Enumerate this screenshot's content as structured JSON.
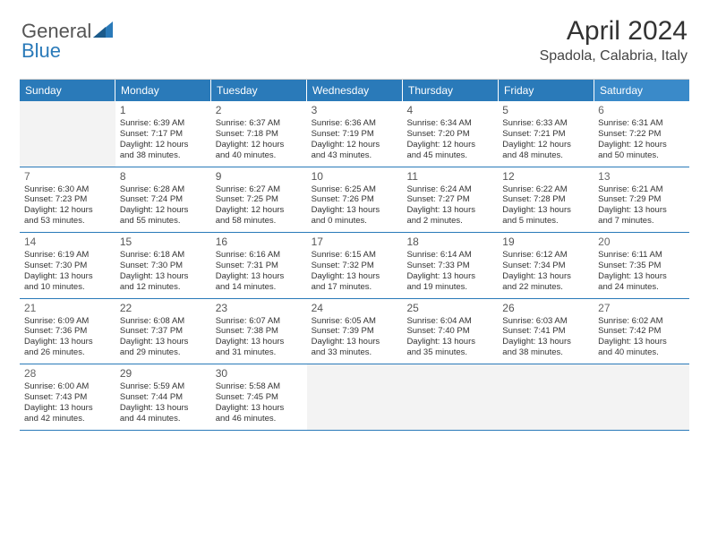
{
  "logo": {
    "text1": "General",
    "text2": "Blue"
  },
  "title": "April 2024",
  "location": "Spadola, Calabria, Italy",
  "colors": {
    "header_bg": "#2a7ab9",
    "header_fg": "#ffffff",
    "row_divider": "#2a7ab9",
    "empty_bg": "#f3f3f3",
    "text": "#333333"
  },
  "weekdays": [
    "Sunday",
    "Monday",
    "Tuesday",
    "Wednesday",
    "Thursday",
    "Friday",
    "Saturday"
  ],
  "rows": [
    [
      {
        "empty": true
      },
      {
        "day": "1",
        "sunrise": "Sunrise: 6:39 AM",
        "sunset": "Sunset: 7:17 PM",
        "daylight1": "Daylight: 12 hours",
        "daylight2": "and 38 minutes."
      },
      {
        "day": "2",
        "sunrise": "Sunrise: 6:37 AM",
        "sunset": "Sunset: 7:18 PM",
        "daylight1": "Daylight: 12 hours",
        "daylight2": "and 40 minutes."
      },
      {
        "day": "3",
        "sunrise": "Sunrise: 6:36 AM",
        "sunset": "Sunset: 7:19 PM",
        "daylight1": "Daylight: 12 hours",
        "daylight2": "and 43 minutes."
      },
      {
        "day": "4",
        "sunrise": "Sunrise: 6:34 AM",
        "sunset": "Sunset: 7:20 PM",
        "daylight1": "Daylight: 12 hours",
        "daylight2": "and 45 minutes."
      },
      {
        "day": "5",
        "sunrise": "Sunrise: 6:33 AM",
        "sunset": "Sunset: 7:21 PM",
        "daylight1": "Daylight: 12 hours",
        "daylight2": "and 48 minutes."
      },
      {
        "day": "6",
        "sunrise": "Sunrise: 6:31 AM",
        "sunset": "Sunset: 7:22 PM",
        "daylight1": "Daylight: 12 hours",
        "daylight2": "and 50 minutes."
      }
    ],
    [
      {
        "day": "7",
        "sunrise": "Sunrise: 6:30 AM",
        "sunset": "Sunset: 7:23 PM",
        "daylight1": "Daylight: 12 hours",
        "daylight2": "and 53 minutes."
      },
      {
        "day": "8",
        "sunrise": "Sunrise: 6:28 AM",
        "sunset": "Sunset: 7:24 PM",
        "daylight1": "Daylight: 12 hours",
        "daylight2": "and 55 minutes."
      },
      {
        "day": "9",
        "sunrise": "Sunrise: 6:27 AM",
        "sunset": "Sunset: 7:25 PM",
        "daylight1": "Daylight: 12 hours",
        "daylight2": "and 58 minutes."
      },
      {
        "day": "10",
        "sunrise": "Sunrise: 6:25 AM",
        "sunset": "Sunset: 7:26 PM",
        "daylight1": "Daylight: 13 hours",
        "daylight2": "and 0 minutes."
      },
      {
        "day": "11",
        "sunrise": "Sunrise: 6:24 AM",
        "sunset": "Sunset: 7:27 PM",
        "daylight1": "Daylight: 13 hours",
        "daylight2": "and 2 minutes."
      },
      {
        "day": "12",
        "sunrise": "Sunrise: 6:22 AM",
        "sunset": "Sunset: 7:28 PM",
        "daylight1": "Daylight: 13 hours",
        "daylight2": "and 5 minutes."
      },
      {
        "day": "13",
        "sunrise": "Sunrise: 6:21 AM",
        "sunset": "Sunset: 7:29 PM",
        "daylight1": "Daylight: 13 hours",
        "daylight2": "and 7 minutes."
      }
    ],
    [
      {
        "day": "14",
        "sunrise": "Sunrise: 6:19 AM",
        "sunset": "Sunset: 7:30 PM",
        "daylight1": "Daylight: 13 hours",
        "daylight2": "and 10 minutes."
      },
      {
        "day": "15",
        "sunrise": "Sunrise: 6:18 AM",
        "sunset": "Sunset: 7:30 PM",
        "daylight1": "Daylight: 13 hours",
        "daylight2": "and 12 minutes."
      },
      {
        "day": "16",
        "sunrise": "Sunrise: 6:16 AM",
        "sunset": "Sunset: 7:31 PM",
        "daylight1": "Daylight: 13 hours",
        "daylight2": "and 14 minutes."
      },
      {
        "day": "17",
        "sunrise": "Sunrise: 6:15 AM",
        "sunset": "Sunset: 7:32 PM",
        "daylight1": "Daylight: 13 hours",
        "daylight2": "and 17 minutes."
      },
      {
        "day": "18",
        "sunrise": "Sunrise: 6:14 AM",
        "sunset": "Sunset: 7:33 PM",
        "daylight1": "Daylight: 13 hours",
        "daylight2": "and 19 minutes."
      },
      {
        "day": "19",
        "sunrise": "Sunrise: 6:12 AM",
        "sunset": "Sunset: 7:34 PM",
        "daylight1": "Daylight: 13 hours",
        "daylight2": "and 22 minutes."
      },
      {
        "day": "20",
        "sunrise": "Sunrise: 6:11 AM",
        "sunset": "Sunset: 7:35 PM",
        "daylight1": "Daylight: 13 hours",
        "daylight2": "and 24 minutes."
      }
    ],
    [
      {
        "day": "21",
        "sunrise": "Sunrise: 6:09 AM",
        "sunset": "Sunset: 7:36 PM",
        "daylight1": "Daylight: 13 hours",
        "daylight2": "and 26 minutes."
      },
      {
        "day": "22",
        "sunrise": "Sunrise: 6:08 AM",
        "sunset": "Sunset: 7:37 PM",
        "daylight1": "Daylight: 13 hours",
        "daylight2": "and 29 minutes."
      },
      {
        "day": "23",
        "sunrise": "Sunrise: 6:07 AM",
        "sunset": "Sunset: 7:38 PM",
        "daylight1": "Daylight: 13 hours",
        "daylight2": "and 31 minutes."
      },
      {
        "day": "24",
        "sunrise": "Sunrise: 6:05 AM",
        "sunset": "Sunset: 7:39 PM",
        "daylight1": "Daylight: 13 hours",
        "daylight2": "and 33 minutes."
      },
      {
        "day": "25",
        "sunrise": "Sunrise: 6:04 AM",
        "sunset": "Sunset: 7:40 PM",
        "daylight1": "Daylight: 13 hours",
        "daylight2": "and 35 minutes."
      },
      {
        "day": "26",
        "sunrise": "Sunrise: 6:03 AM",
        "sunset": "Sunset: 7:41 PM",
        "daylight1": "Daylight: 13 hours",
        "daylight2": "and 38 minutes."
      },
      {
        "day": "27",
        "sunrise": "Sunrise: 6:02 AM",
        "sunset": "Sunset: 7:42 PM",
        "daylight1": "Daylight: 13 hours",
        "daylight2": "and 40 minutes."
      }
    ],
    [
      {
        "day": "28",
        "sunrise": "Sunrise: 6:00 AM",
        "sunset": "Sunset: 7:43 PM",
        "daylight1": "Daylight: 13 hours",
        "daylight2": "and 42 minutes."
      },
      {
        "day": "29",
        "sunrise": "Sunrise: 5:59 AM",
        "sunset": "Sunset: 7:44 PM",
        "daylight1": "Daylight: 13 hours",
        "daylight2": "and 44 minutes."
      },
      {
        "day": "30",
        "sunrise": "Sunrise: 5:58 AM",
        "sunset": "Sunset: 7:45 PM",
        "daylight1": "Daylight: 13 hours",
        "daylight2": "and 46 minutes."
      },
      {
        "empty": true
      },
      {
        "empty": true
      },
      {
        "empty": true
      },
      {
        "empty": true
      }
    ]
  ]
}
